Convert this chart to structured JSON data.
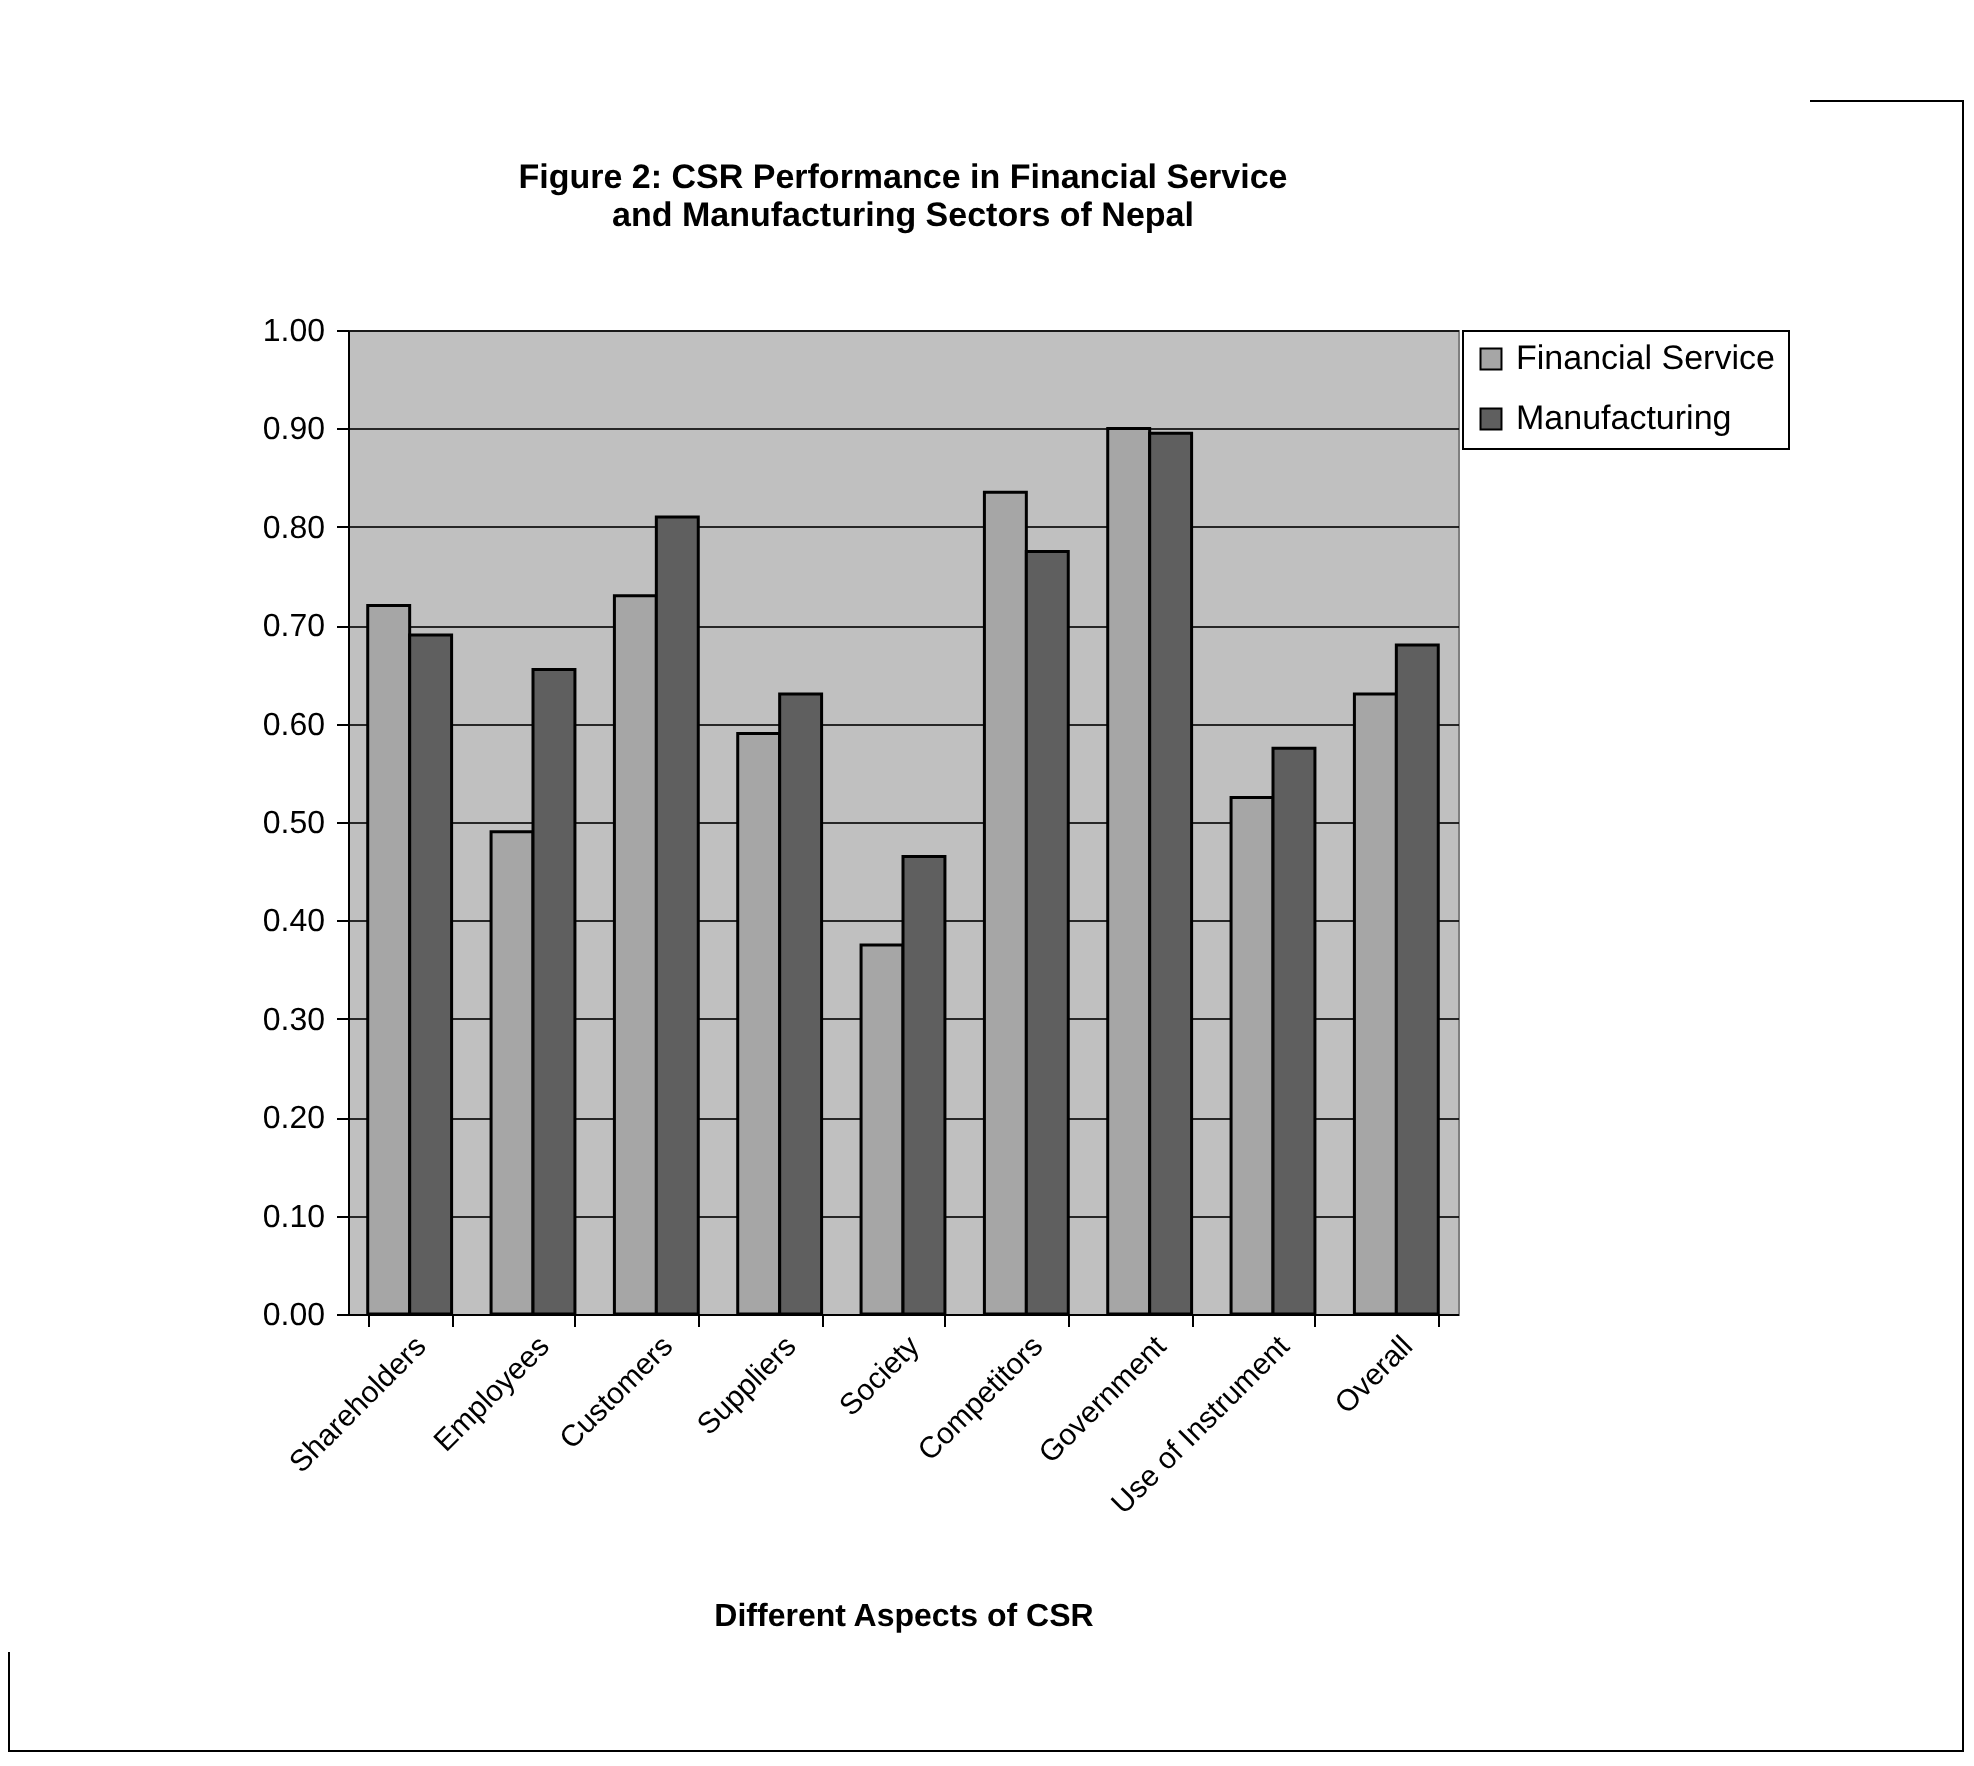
{
  "chart_data": {
    "type": "bar",
    "title": "Figure 2: CSR Performance in Financial Service\nand Manufacturing Sectors of Nepal",
    "xlabel": "Different Aspects of CSR",
    "categories": [
      "Shareholders",
      "Employees",
      "Customers",
      "Suppliers",
      "Society",
      "Competitors",
      "Government",
      "Use of Instrument",
      "Overall"
    ],
    "series": [
      {
        "name": "Financial Service",
        "color": "#a6a6a6",
        "values": [
          0.72,
          0.49,
          0.73,
          0.59,
          0.375,
          0.835,
          0.9,
          0.525,
          0.63
        ]
      },
      {
        "name": "Manufacturing",
        "color": "#5f5f5f",
        "values": [
          0.69,
          0.655,
          0.81,
          0.63,
          0.465,
          0.775,
          0.895,
          0.575,
          0.68
        ]
      }
    ],
    "ylim": [
      0,
      1
    ],
    "yticks": [
      {
        "value": 0,
        "label": "0.00"
      },
      {
        "value": 0.1,
        "label": "0.10"
      },
      {
        "value": 0.2,
        "label": "0.20"
      },
      {
        "value": 0.3,
        "label": "0.30"
      },
      {
        "value": 0.4,
        "label": "0.40"
      },
      {
        "value": 0.5,
        "label": "0.50"
      },
      {
        "value": 0.6,
        "label": "0.60"
      },
      {
        "value": 0.7,
        "label": "0.70"
      },
      {
        "value": 0.8,
        "label": "0.80"
      },
      {
        "value": 0.9,
        "label": "0.90"
      },
      {
        "value": 1,
        "label": "1.00"
      }
    ],
    "grid": "y",
    "legend": "right"
  }
}
